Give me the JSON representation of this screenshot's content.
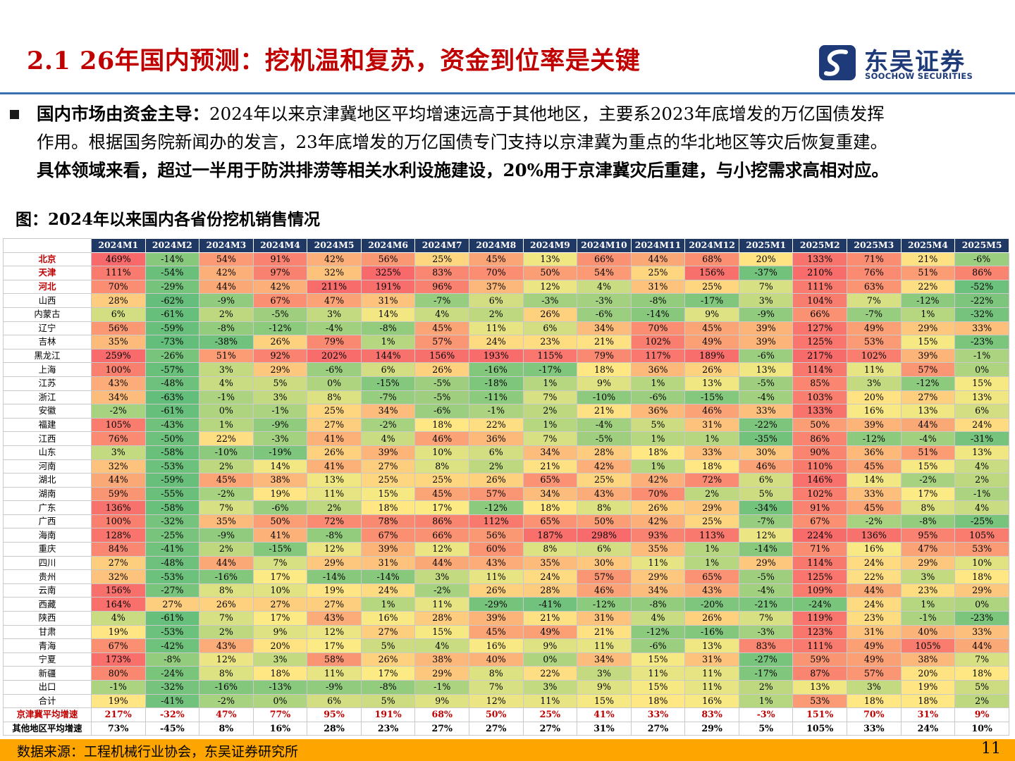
{
  "header": {
    "title": "2.1 26年国内预测：挖机温和复苏，资金到位率是关键",
    "logo_cn": "东吴证券",
    "logo_en": "SOOCHOW SECURITIES"
  },
  "bullet": {
    "lead": "国内市场由资金主导：",
    "line1_rest": "2024年以来京津冀地区平均增速远高于其他地区，主要系2023年底增发的万亿国债发挥",
    "line2": "作用。根据国务院新闻办的发言，23年底增发的万亿国债专门支持以京津冀为重点的华北地区等灾后恢复重建。",
    "line3": "具体领域来看，超过一半用于防洪排涝等相关水利设施建设，20%用于京津冀灾后重建，与小挖需求高相对应。"
  },
  "figure_title": "图：2024年以来国内各省份挖机销售情况",
  "table": {
    "columns": [
      "2024M1",
      "2024M2",
      "2024M3",
      "2024M4",
      "2024M5",
      "2024M6",
      "2024M7",
      "2024M8",
      "2024M9",
      "2024M10",
      "2024M11",
      "2024M12",
      "2025M1",
      "2025M2",
      "2025M3",
      "2025M4",
      "2025M5"
    ],
    "rows": [
      {
        "label": "北京",
        "highlight": true,
        "values": [
          469,
          -14,
          54,
          91,
          42,
          56,
          25,
          45,
          13,
          66,
          44,
          68,
          20,
          133,
          71,
          21,
          -6
        ]
      },
      {
        "label": "天津",
        "highlight": true,
        "values": [
          111,
          -54,
          42,
          97,
          32,
          325,
          83,
          70,
          50,
          54,
          25,
          156,
          -37,
          210,
          76,
          51,
          86
        ]
      },
      {
        "label": "河北",
        "highlight": true,
        "values": [
          70,
          -29,
          44,
          42,
          211,
          191,
          96,
          37,
          12,
          4,
          31,
          25,
          7,
          111,
          63,
          22,
          -52
        ]
      },
      {
        "label": "山西",
        "values": [
          28,
          -62,
          -9,
          67,
          47,
          31,
          -7,
          6,
          -3,
          -3,
          -8,
          -17,
          3,
          104,
          7,
          -12,
          -22
        ]
      },
      {
        "label": "内蒙古",
        "values": [
          6,
          -61,
          2,
          -5,
          3,
          14,
          4,
          2,
          26,
          -6,
          -14,
          9,
          -9,
          66,
          -7,
          1,
          -32
        ]
      },
      {
        "label": "辽宁",
        "values": [
          56,
          -59,
          -8,
          -12,
          -4,
          -8,
          45,
          11,
          6,
          34,
          70,
          45,
          39,
          127,
          49,
          29,
          33
        ]
      },
      {
        "label": "吉林",
        "values": [
          35,
          -73,
          -38,
          26,
          79,
          1,
          57,
          24,
          23,
          21,
          102,
          49,
          39,
          125,
          53,
          15,
          -23
        ]
      },
      {
        "label": "黑龙江",
        "values": [
          259,
          -26,
          51,
          92,
          202,
          144,
          156,
          193,
          115,
          79,
          117,
          189,
          -6,
          217,
          102,
          39,
          -1
        ]
      },
      {
        "label": "上海",
        "values": [
          100,
          -57,
          3,
          29,
          -6,
          6,
          26,
          -16,
          -17,
          18,
          36,
          26,
          13,
          114,
          11,
          57,
          0
        ]
      },
      {
        "label": "江苏",
        "values": [
          43,
          -48,
          4,
          5,
          0,
          -15,
          -5,
          -18,
          1,
          9,
          1,
          13,
          -5,
          85,
          3,
          -12,
          15
        ]
      },
      {
        "label": "浙江",
        "values": [
          34,
          -63,
          -1,
          3,
          8,
          -7,
          -5,
          -11,
          7,
          -10,
          -6,
          -15,
          -4,
          103,
          20,
          27,
          13
        ]
      },
      {
        "label": "安徽",
        "values": [
          -2,
          -61,
          0,
          -1,
          25,
          34,
          -6,
          -1,
          2,
          21,
          36,
          46,
          33,
          133,
          16,
          13,
          6
        ]
      },
      {
        "label": "福建",
        "values": [
          105,
          -43,
          1,
          -9,
          27,
          -2,
          18,
          22,
          1,
          -4,
          5,
          31,
          -22,
          50,
          39,
          44,
          24
        ]
      },
      {
        "label": "江西",
        "values": [
          76,
          -50,
          22,
          -3,
          41,
          4,
          46,
          36,
          7,
          -5,
          1,
          1,
          -35,
          86,
          -12,
          -4,
          -31
        ]
      },
      {
        "label": "山东",
        "values": [
          3,
          -58,
          -10,
          -19,
          26,
          39,
          10,
          6,
          34,
          28,
          18,
          33,
          30,
          90,
          36,
          51,
          13
        ]
      },
      {
        "label": "河南",
        "values": [
          32,
          -53,
          2,
          14,
          41,
          27,
          8,
          2,
          21,
          42,
          1,
          18,
          46,
          110,
          45,
          15,
          4
        ]
      },
      {
        "label": "湖北",
        "values": [
          44,
          -59,
          45,
          38,
          13,
          25,
          25,
          26,
          65,
          25,
          42,
          72,
          6,
          146,
          14,
          -2,
          2
        ]
      },
      {
        "label": "湖南",
        "values": [
          59,
          -55,
          -2,
          19,
          11,
          15,
          45,
          57,
          34,
          43,
          70,
          2,
          5,
          102,
          33,
          17,
          -1
        ]
      },
      {
        "label": "广东",
        "values": [
          136,
          -58,
          7,
          -6,
          2,
          18,
          17,
          -12,
          18,
          8,
          26,
          29,
          -34,
          91,
          45,
          8,
          4
        ]
      },
      {
        "label": "广西",
        "values": [
          100,
          -32,
          35,
          50,
          72,
          78,
          86,
          112,
          65,
          50,
          42,
          25,
          -7,
          67,
          -2,
          -8,
          -25
        ]
      },
      {
        "label": "海南",
        "values": [
          128,
          -25,
          -9,
          41,
          -8,
          67,
          66,
          56,
          187,
          298,
          93,
          113,
          12,
          224,
          136,
          95,
          105
        ]
      },
      {
        "label": "重庆",
        "values": [
          84,
          -41,
          2,
          -15,
          12,
          39,
          12,
          60,
          8,
          6,
          35,
          1,
          -14,
          71,
          16,
          47,
          53
        ]
      },
      {
        "label": "四川",
        "values": [
          27,
          -48,
          44,
          7,
          29,
          31,
          44,
          43,
          35,
          30,
          11,
          1,
          29,
          114,
          24,
          29,
          10
        ]
      },
      {
        "label": "贵州",
        "values": [
          32,
          -53,
          -16,
          17,
          -14,
          -14,
          3,
          11,
          24,
          57,
          29,
          65,
          -5,
          125,
          22,
          3,
          18
        ]
      },
      {
        "label": "云南",
        "values": [
          156,
          -27,
          8,
          10,
          19,
          24,
          -2,
          26,
          28,
          46,
          34,
          43,
          -4,
          109,
          44,
          23,
          29
        ]
      },
      {
        "label": "西藏",
        "values": [
          164,
          27,
          26,
          27,
          27,
          1,
          11,
          -29,
          -41,
          -12,
          -8,
          -20,
          -21,
          -24,
          24,
          1,
          0
        ]
      },
      {
        "label": "陕西",
        "values": [
          4,
          -61,
          7,
          17,
          43,
          16,
          28,
          39,
          21,
          31,
          4,
          26,
          7,
          119,
          23,
          -1,
          -23
        ]
      },
      {
        "label": "甘肃",
        "values": [
          19,
          -53,
          2,
          9,
          12,
          27,
          15,
          45,
          49,
          21,
          -12,
          -16,
          -3,
          123,
          31,
          40,
          33
        ]
      },
      {
        "label": "青海",
        "values": [
          67,
          -42,
          43,
          20,
          17,
          5,
          4,
          16,
          9,
          11,
          -6,
          13,
          83,
          111,
          49,
          105,
          44
        ]
      },
      {
        "label": "宁夏",
        "values": [
          173,
          -8,
          12,
          3,
          58,
          26,
          38,
          40,
          0,
          34,
          15,
          31,
          -27,
          59,
          49,
          38,
          7
        ]
      },
      {
        "label": "新疆",
        "values": [
          80,
          -24,
          8,
          18,
          11,
          17,
          29,
          8,
          22,
          3,
          11,
          11,
          -17,
          87,
          57,
          20,
          18
        ]
      },
      {
        "label": "出口",
        "values": [
          -1,
          -32,
          -16,
          -13,
          -9,
          -8,
          -1,
          7,
          3,
          9,
          15,
          11,
          2,
          13,
          3,
          19,
          5
        ]
      },
      {
        "label": "合计",
        "values": [
          19,
          -41,
          -2,
          0,
          6,
          5,
          9,
          12,
          11,
          15,
          18,
          16,
          1,
          53,
          18,
          18,
          2
        ]
      }
    ],
    "summary_rows": [
      {
        "label": "京津冀平均增速",
        "red": true,
        "values": [
          217,
          -32,
          47,
          77,
          95,
          191,
          68,
          50,
          25,
          41,
          33,
          83,
          -3,
          151,
          70,
          31,
          9
        ]
      },
      {
        "label": "其他地区平均增速",
        "red": false,
        "values": [
          73,
          -45,
          8,
          16,
          28,
          23,
          27,
          27,
          27,
          31,
          27,
          29,
          5,
          105,
          33,
          24,
          10
        ]
      }
    ],
    "color_scale": {
      "low": "#63be7b",
      "mid": "#ffeb84",
      "high": "#f8696b"
    }
  },
  "footer": {
    "source": "数据来源：工程机械行业协会，东吴证券研究所",
    "page_number": "11"
  }
}
